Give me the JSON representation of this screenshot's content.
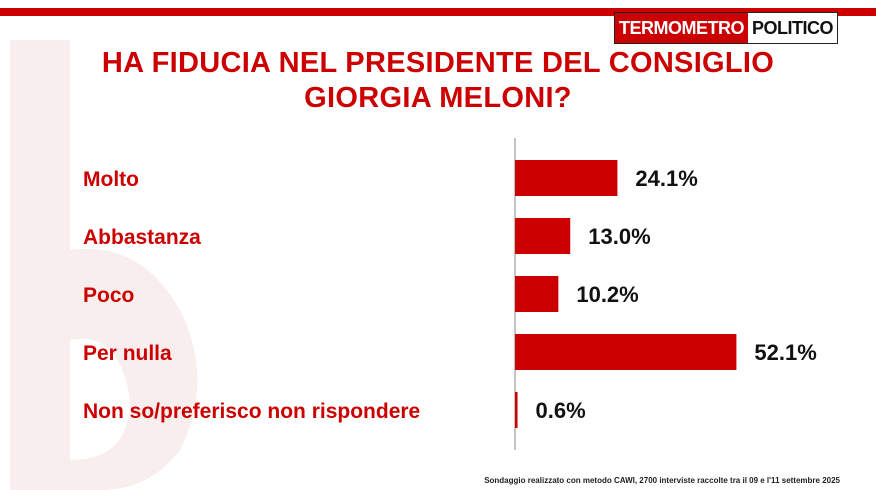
{
  "brand": {
    "part1": "TERMOMETRO",
    "part2": "POLITICO",
    "accent": "#cc0000"
  },
  "title": {
    "line1": "HA FIDUCIA NEL PRESIDENTE DEL CONSIGLIO",
    "line2": "GIORGIA MELONI?"
  },
  "chart_data": {
    "type": "bar",
    "orientation": "horizontal",
    "categories": [
      "Molto",
      "Abbastanza",
      "Poco",
      "Per nulla",
      "Non so/preferisco non rispondere"
    ],
    "values": [
      24.1,
      13.0,
      10.2,
      52.1,
      0.6
    ],
    "value_labels": [
      "24.1%",
      "13.0%",
      "10.2%",
      "52.1%",
      "0.6%"
    ],
    "xlim": [
      0,
      100
    ],
    "bar_color": "#cc0000",
    "grid": false
  },
  "footnote": "Sondaggio realizzato con metodo CAWI, 2700 interviste raccolte tra il 09 e l'11  settembre 2025"
}
